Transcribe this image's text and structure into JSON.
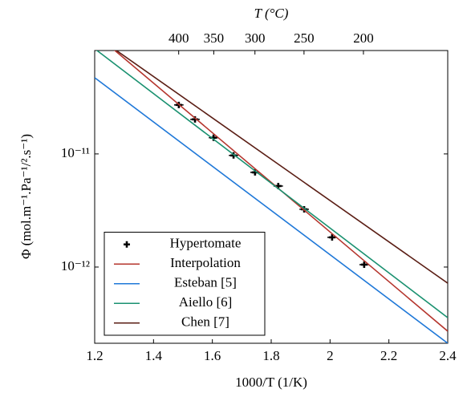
{
  "chart_data": {
    "type": "line",
    "xlabel": "1000/T (1/K)",
    "ylabel": "Φ (mol.m⁻¹.Pa⁻¹/².s⁻¹)",
    "x2label": "T (°C)",
    "xlim": [
      1.2,
      2.4
    ],
    "xticks": [
      1.2,
      1.4,
      1.6,
      1.8,
      2,
      2.2,
      2.4
    ],
    "x2ticks": [
      {
        "value": 1.48555,
        "label": "400"
      },
      {
        "value": 1.60475,
        "label": "350"
      },
      {
        "value": 1.74474,
        "label": "300"
      },
      {
        "value": 1.9115,
        "label": "250"
      },
      {
        "value": 2.11349,
        "label": "200"
      }
    ],
    "ylog": true,
    "ylim": [
      2.12e-13,
      8.2e-11
    ],
    "yticks": [
      {
        "value": 1e-11,
        "label": "10⁻¹¹"
      },
      {
        "value": 1e-12,
        "label": "10⁻¹²"
      }
    ],
    "legend": "lower left",
    "series": [
      {
        "name": "Hypertomate",
        "color": "#000000",
        "mode": "markers",
        "x": [
          1.486,
          1.541,
          1.604,
          1.672,
          1.745,
          1.824,
          1.912,
          2.007,
          2.116
        ],
        "values": [
          2.71e-11,
          2.02e-11,
          1.39e-11,
          9.7e-12,
          6.87e-12,
          5.2e-12,
          3.24e-12,
          1.83e-12,
          1.05e-12
        ],
        "xerr": [
          0.016,
          0.016,
          0.016,
          0.016,
          0.016,
          0.016,
          0.016,
          0.016,
          0.016
        ]
      },
      {
        "name": "Interpolation",
        "color": "#b5352d",
        "mode": "lines",
        "x": [
          1.2,
          2.4
        ],
        "values": [
          1.16e-10,
          2.71e-13
        ]
      },
      {
        "name": "Esteban [5]",
        "color": "#1f78d8",
        "mode": "lines",
        "x": [
          1.2,
          2.4
        ],
        "values": [
          4.72e-11,
          2.12e-13
        ]
      },
      {
        "name": "Aiello [6]",
        "color": "#1a9170",
        "mode": "lines",
        "x": [
          1.2,
          2.4
        ],
        "values": [
          8.5e-11,
          3.57e-13
        ]
      },
      {
        "name": "Chen [7]",
        "color": "#5a1d14",
        "mode": "lines",
        "x": [
          1.2,
          2.4
        ],
        "values": [
          1.12e-10,
          7.2e-13
        ]
      }
    ]
  }
}
